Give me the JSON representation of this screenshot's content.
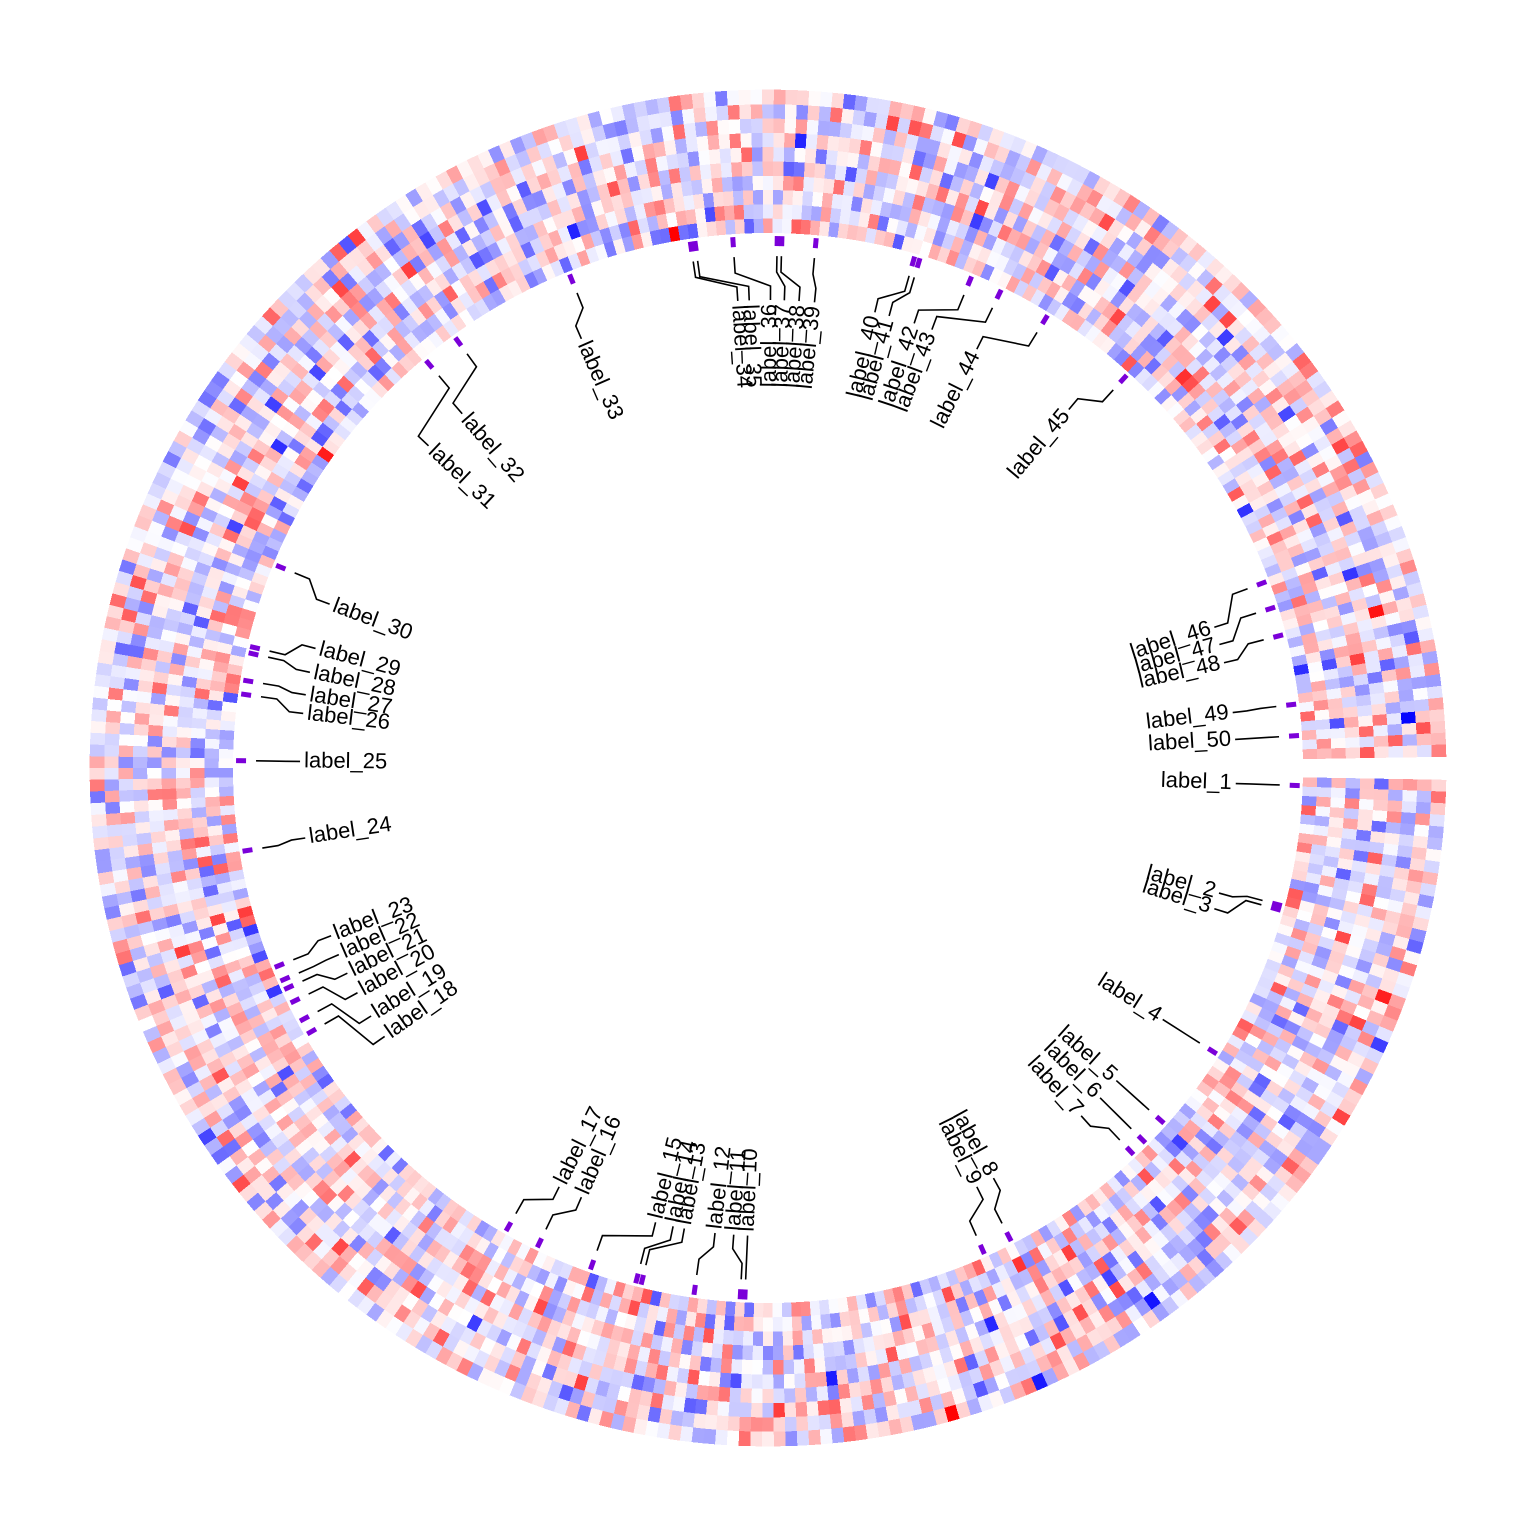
{
  "chart_data": {
    "type": "heatmap",
    "layout": "circular",
    "title": "",
    "color_scale": {
      "low": "#0000FF",
      "mid": "#FFFFFF",
      "high": "#FF0000",
      "range": [
        -3,
        3
      ]
    },
    "marker_color": "#7B00D9",
    "label_color": "#000000",
    "start_angle_deg": 1,
    "gap_deg": 2,
    "n_columns": 360,
    "n_rows": 10,
    "tracks": [
      {
        "name": "",
        "rows": 10
      }
    ],
    "label_texts": [
      "label_1",
      "label_2",
      "label_3",
      "label_4",
      "label_5",
      "label_6",
      "label_7",
      "label_8",
      "label_9",
      "label_10",
      "label_11",
      "label_12",
      "label_13",
      "label_14",
      "label_15",
      "label_16",
      "label_17",
      "label_18",
      "label_19",
      "label_20",
      "label_21",
      "label_22",
      "label_23",
      "label_24",
      "label_25",
      "label_26",
      "label_27",
      "label_28",
      "label_29",
      "label_30",
      "label_31",
      "label_32",
      "label_33",
      "label_34",
      "label_35",
      "label_36",
      "label_37",
      "label_38",
      "label_39",
      "label_40",
      "label_41",
      "label_42",
      "label_43",
      "label_44",
      "label_45",
      "label_46",
      "label_47",
      "label_48",
      "label_49",
      "label_50"
    ],
    "label_column_index": [
      4,
      19,
      20,
      45,
      58,
      62,
      64,
      86,
      90,
      123,
      124,
      130,
      137,
      138,
      144,
      160,
      165,
      210,
      212,
      215,
      217,
      218,
      220,
      239,
      253,
      262,
      263,
      267,
      268,
      280,
      316,
      321,
      338,
      355,
      356,
      375,
      381,
      382,
      387,
      402,
      403,
      410,
      414,
      421,
      434,
      472,
      476,
      480,
      493,
      498
    ],
    "label_angle_deg": [
      358.1,
      345.0,
      344.5,
      327.5,
      318.1,
      315.2,
      313.4,
      297.2,
      294.0,
      267.5,
      267.0,
      262.0,
      256.2,
      255.6,
      250.5,
      244.3,
      240.5,
      210.0,
      208.4,
      206.2,
      204.6,
      203.6,
      202.0,
      189.0,
      179.2,
      172.0,
      170.5,
      167.5,
      166.8,
      157.6,
      130.0,
      126.0,
      111.9,
      98.4,
      97.9,
      93.8,
      89.0,
      88.5,
      84.8,
      74.0,
      73.4,
      67.5,
      64.0,
      58.3,
      47.6,
      20.5,
      17.6,
      14.5,
      6.9,
      3.5
    ],
    "label_text_angle_deg": [
      358.1,
      344.5,
      342.5,
      327.5,
      318.1,
      315.2,
      312.0,
      298.8,
      296.5,
      267.5,
      265.8,
      263.5,
      259.7,
      258.3,
      256.1,
      246.5,
      243.5,
      215.0,
      212.0,
      208.7,
      206.0,
      203.5,
      201.0,
      188.6,
      179.2,
      173.3,
      171.0,
      168.2,
      165.2,
      159.5,
      136.5,
      130.8,
      113.5,
      93.7,
      92.3,
      89.7,
      88.0,
      86.2,
      84.3,
      76.8,
      75.0,
      71.8,
      69.5,
      63.5,
      50.0,
      17.5,
      15.3,
      13.0,
      6.8,
      3.5
    ]
  }
}
